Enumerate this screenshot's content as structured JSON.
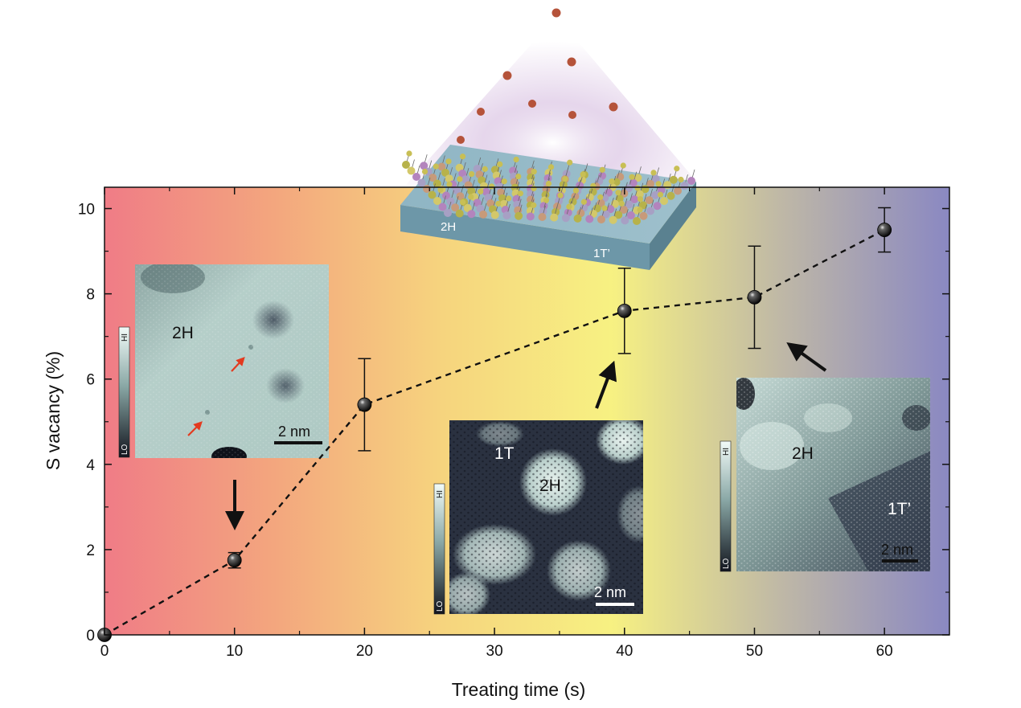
{
  "colors": {
    "gradient_stops": [
      "#f07c86",
      "#f3a67e",
      "#f6d47e",
      "#f7f182",
      "#bfb8a6",
      "#8a88c2"
    ],
    "stm_dark": "#1c1f2b",
    "stm_light": "#e4f0ec",
    "arrow_red": "#e33a1f",
    "marker": "#111111"
  },
  "chart_data": {
    "type": "scatter",
    "xlabel": "Treating time (s)",
    "ylabel": "S vacancy (%)",
    "xlim": [
      0,
      65
    ],
    "ylim": [
      0,
      10.5
    ],
    "xticks": [
      0,
      10,
      20,
      30,
      40,
      50,
      60
    ],
    "yticks": [
      0,
      2,
      4,
      6,
      8,
      10
    ],
    "series": [
      {
        "line_style": "dashed",
        "points": [
          {
            "x": 0,
            "y": 0.0,
            "err": 0.0
          },
          {
            "x": 10,
            "y": 1.75,
            "err": 0.18
          },
          {
            "x": 20,
            "y": 5.4,
            "err": 1.08
          },
          {
            "x": 40,
            "y": 7.6,
            "err": 1.0
          },
          {
            "x": 50,
            "y": 7.92,
            "err": 1.2
          },
          {
            "x": 60,
            "y": 9.5,
            "err": 0.52
          }
        ]
      }
    ]
  },
  "illustration": {
    "label_2h": "2H",
    "label_1t_prime": "1T’"
  },
  "insets": [
    {
      "phase_labels": [
        "2H"
      ],
      "scale_bar": "2 nm",
      "colorbar_hi": "HI",
      "colorbar_lo": "LO"
    },
    {
      "phase_labels": [
        "1T",
        "2H"
      ],
      "scale_bar": "2 nm",
      "colorbar_hi": "HI",
      "colorbar_lo": "LO"
    },
    {
      "phase_labels": [
        "2H",
        "1T’"
      ],
      "scale_bar": "2 nm",
      "colorbar_hi": "HI",
      "colorbar_lo": "LO"
    }
  ]
}
